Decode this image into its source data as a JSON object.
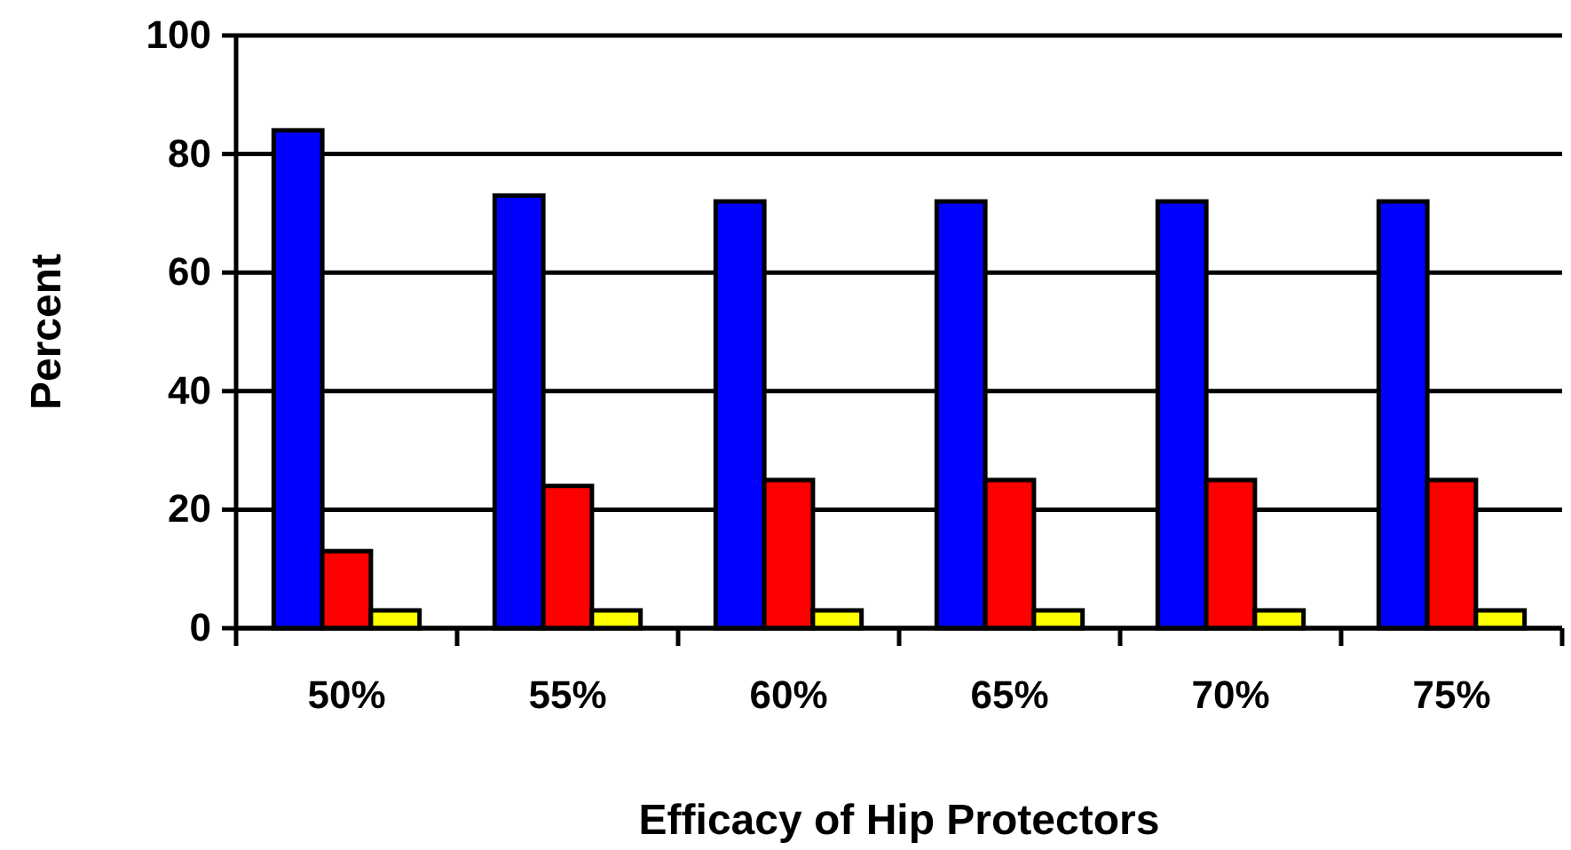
{
  "chart_data": {
    "type": "bar",
    "xlabel": "Efficacy of Hip Protectors",
    "ylabel": "Percent",
    "categories": [
      "50%",
      "55%",
      "60%",
      "65%",
      "70%",
      "75%"
    ],
    "series": [
      {
        "color": "#0000ff",
        "values": [
          84,
          73,
          72,
          72,
          72,
          72
        ]
      },
      {
        "color": "#ff0000",
        "values": [
          13,
          24,
          25,
          25,
          25,
          25
        ]
      },
      {
        "color": "#ffff00",
        "values": [
          3,
          3,
          3,
          3,
          3,
          3
        ]
      }
    ],
    "ylim": [
      0,
      100
    ],
    "yticks": [
      0,
      20,
      40,
      60,
      80,
      100
    ],
    "grid": "y"
  }
}
